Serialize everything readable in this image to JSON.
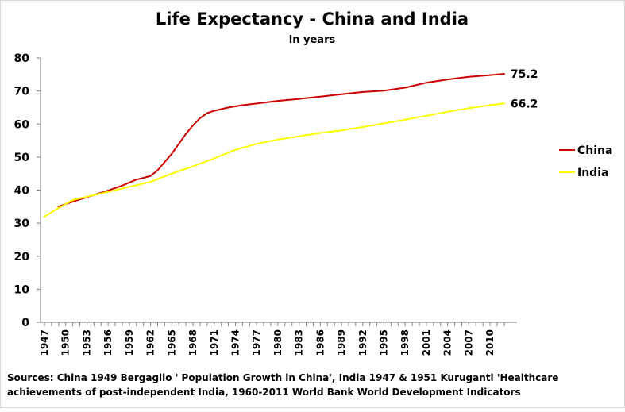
{
  "chart_data": {
    "type": "line",
    "title": "Life Expectancy - China and India",
    "subtitle": "in years",
    "xlabel": "",
    "ylabel": "",
    "ylim": [
      0,
      80
    ],
    "yticks": [
      "0",
      "10",
      "20",
      "30",
      "40",
      "50",
      "60",
      "70",
      "80"
    ],
    "xlim": [
      1947,
      2011
    ],
    "xticks": [
      "1947",
      "1950",
      "1953",
      "1956",
      "1959",
      "1962",
      "1965",
      "1968",
      "1971",
      "1974",
      "1977",
      "1980",
      "1983",
      "1986",
      "1989",
      "1992",
      "1995",
      "1998",
      "2001",
      "2004",
      "2007",
      "2010"
    ],
    "grid": false,
    "legend_position": "right",
    "series": [
      {
        "name": "China",
        "color": "#cc0000",
        "end_label": "75.2",
        "points": [
          [
            1949,
            35.0
          ],
          [
            1950,
            35.8
          ],
          [
            1952,
            37.2
          ],
          [
            1954,
            38.5
          ],
          [
            1956,
            39.9
          ],
          [
            1958,
            41.4
          ],
          [
            1960,
            43.2
          ],
          [
            1961,
            43.7
          ],
          [
            1962,
            44.3
          ],
          [
            1963,
            46.0
          ],
          [
            1964,
            48.5
          ],
          [
            1965,
            51.0
          ],
          [
            1966,
            54.0
          ],
          [
            1967,
            57.0
          ],
          [
            1968,
            59.6
          ],
          [
            1969,
            61.8
          ],
          [
            1970,
            63.3
          ],
          [
            1971,
            64.0
          ],
          [
            1973,
            65.0
          ],
          [
            1975,
            65.7
          ],
          [
            1977,
            66.2
          ],
          [
            1980,
            67.0
          ],
          [
            1983,
            67.6
          ],
          [
            1986,
            68.3
          ],
          [
            1989,
            69.0
          ],
          [
            1992,
            69.7
          ],
          [
            1995,
            70.1
          ],
          [
            1998,
            71.0
          ],
          [
            2001,
            72.5
          ],
          [
            2004,
            73.5
          ],
          [
            2007,
            74.3
          ],
          [
            2010,
            74.8
          ],
          [
            2012,
            75.2
          ]
        ]
      },
      {
        "name": "India",
        "color": "#ffff00",
        "end_label": "66.2",
        "points": [
          [
            1947,
            32.0
          ],
          [
            1949,
            34.6
          ],
          [
            1951,
            37.0
          ],
          [
            1953,
            38.0
          ],
          [
            1956,
            39.5
          ],
          [
            1959,
            41.0
          ],
          [
            1962,
            42.5
          ],
          [
            1965,
            45.0
          ],
          [
            1968,
            47.2
          ],
          [
            1971,
            49.6
          ],
          [
            1974,
            52.2
          ],
          [
            1977,
            54.0
          ],
          [
            1980,
            55.3
          ],
          [
            1983,
            56.3
          ],
          [
            1986,
            57.3
          ],
          [
            1989,
            58.1
          ],
          [
            1992,
            59.1
          ],
          [
            1995,
            60.2
          ],
          [
            1998,
            61.3
          ],
          [
            2001,
            62.5
          ],
          [
            2004,
            63.7
          ],
          [
            2007,
            64.8
          ],
          [
            2010,
            65.7
          ],
          [
            2012,
            66.2
          ]
        ]
      }
    ]
  },
  "source_note": "Sources: China 1949  Bergaglio ' Population Growth in China', India 1947  & 1951  Kuruganti  'Healthcare achievements of post-independent India, 1960-2011   World Bank  World  Development  Indicators"
}
